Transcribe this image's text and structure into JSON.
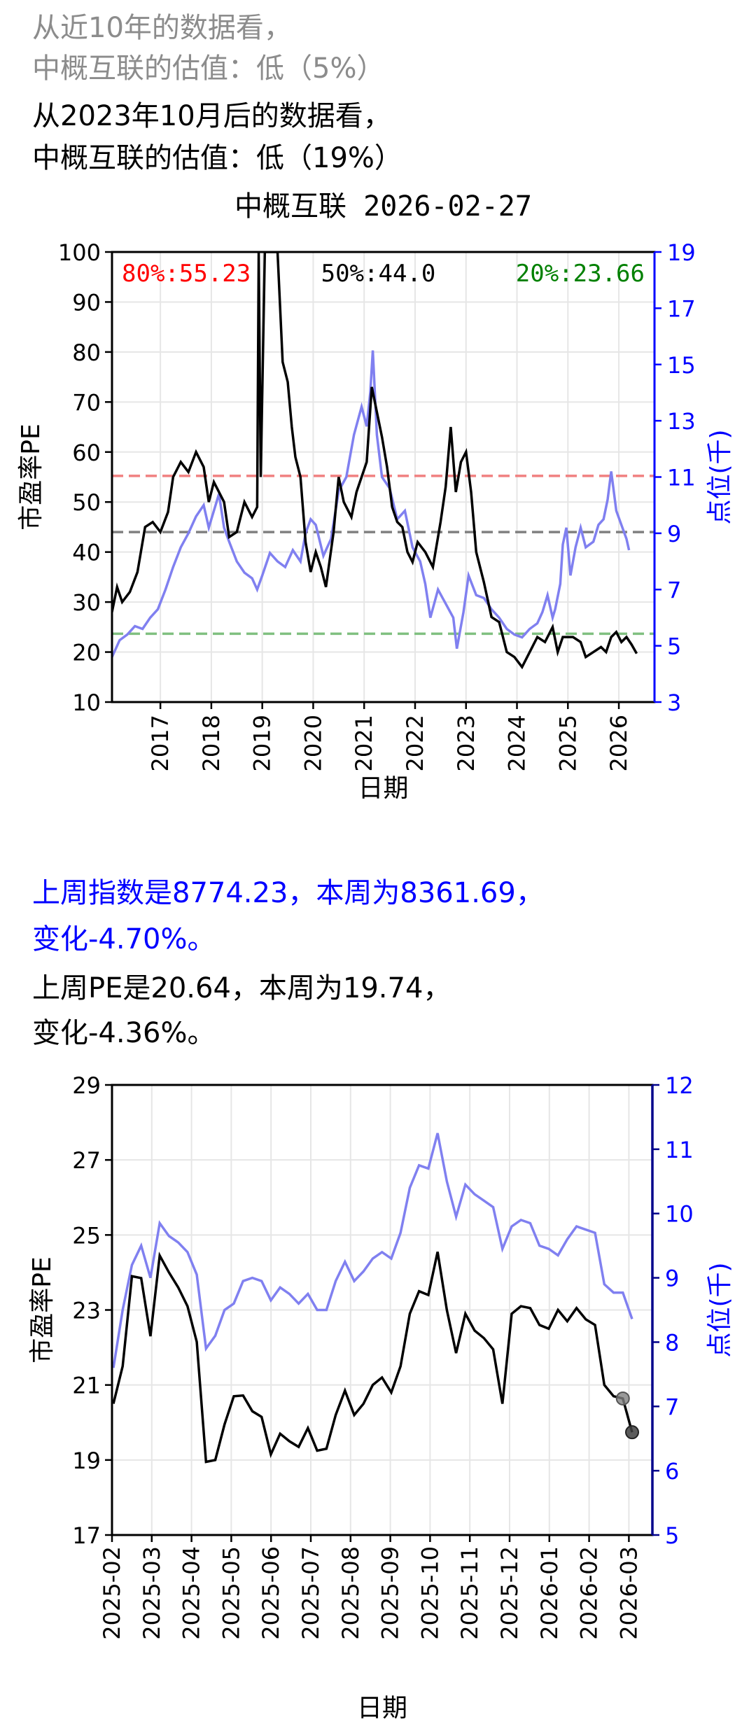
{
  "header": {
    "line1": "从近10年的数据看，",
    "line2": "中概互联的估值：低（5%）",
    "line3": "从2023年10月后的数据看，",
    "line4": "中概互联的估值：低（19%）"
  },
  "summary": {
    "index_line1": "上周指数是8774.23，本周为8361.69，",
    "index_line2": "变化-4.70%。",
    "pe_line1": "上周PE是20.64，本周为19.74，",
    "pe_line2": "变化-4.36%。"
  },
  "colors": {
    "pe": "#000000",
    "index": "#8080f0",
    "p80": "#f08080",
    "p50": "#808080",
    "p20": "#80c080",
    "right_axis": "#0000ff",
    "right_axis2": "#00008b"
  },
  "chart_data": [
    {
      "type": "line",
      "title": "中概互联 2026-02-27",
      "xlabel": "日期",
      "ylabel": "市盈率PE",
      "y2label": "点位(千)",
      "ylim": [
        10,
        100
      ],
      "y2lim": [
        3,
        19
      ],
      "yticks": [
        10,
        20,
        30,
        40,
        50,
        60,
        70,
        80,
        90,
        100
      ],
      "y2ticks": [
        3,
        5,
        7,
        9,
        11,
        13,
        15,
        17,
        19
      ],
      "xticks": [
        "2017",
        "2018",
        "2019",
        "2020",
        "2021",
        "2022",
        "2023",
        "2024",
        "2025",
        "2026"
      ],
      "xlim": [
        2016.05,
        2026.7
      ],
      "grid": true,
      "percentiles": [
        {
          "label": "80%:55.23",
          "value": 55.23,
          "color": "#ff0000"
        },
        {
          "label": "50%:44.0",
          "value": 44.0,
          "color": "#000000"
        },
        {
          "label": "20%:23.66",
          "value": 23.66,
          "color": "#008000"
        }
      ],
      "series": [
        {
          "name": "PE",
          "axis": "left",
          "points": [
            [
              2016.05,
              28
            ],
            [
              2016.15,
              33
            ],
            [
              2016.25,
              30
            ],
            [
              2016.4,
              32
            ],
            [
              2016.55,
              36
            ],
            [
              2016.7,
              45
            ],
            [
              2016.85,
              46
            ],
            [
              2017.0,
              44
            ],
            [
              2017.15,
              48
            ],
            [
              2017.25,
              55
            ],
            [
              2017.4,
              58
            ],
            [
              2017.55,
              56
            ],
            [
              2017.7,
              60
            ],
            [
              2017.85,
              57
            ],
            [
              2017.95,
              50
            ],
            [
              2018.05,
              54
            ],
            [
              2018.15,
              52
            ],
            [
              2018.25,
              50
            ],
            [
              2018.35,
              43
            ],
            [
              2018.5,
              44
            ],
            [
              2018.65,
              50
            ],
            [
              2018.8,
              47
            ],
            [
              2018.9,
              49
            ],
            [
              2018.93,
              100
            ],
            [
              2018.97,
              55
            ],
            [
              2019.05,
              100
            ],
            [
              2019.3,
              100
            ],
            [
              2019.4,
              78
            ],
            [
              2019.5,
              74
            ],
            [
              2019.58,
              65
            ],
            [
              2019.65,
              59
            ],
            [
              2019.75,
              55
            ],
            [
              2019.85,
              42
            ],
            [
              2019.95,
              36
            ],
            [
              2020.05,
              40
            ],
            [
              2020.15,
              37
            ],
            [
              2020.25,
              33
            ],
            [
              2020.4,
              44
            ],
            [
              2020.5,
              55
            ],
            [
              2020.6,
              50
            ],
            [
              2020.75,
              47
            ],
            [
              2020.85,
              52
            ],
            [
              2020.95,
              55
            ],
            [
              2021.05,
              58
            ],
            [
              2021.15,
              73
            ],
            [
              2021.25,
              68
            ],
            [
              2021.35,
              63
            ],
            [
              2021.45,
              57
            ],
            [
              2021.55,
              49
            ],
            [
              2021.65,
              46
            ],
            [
              2021.75,
              45
            ],
            [
              2021.85,
              40
            ],
            [
              2021.95,
              38
            ],
            [
              2022.05,
              42
            ],
            [
              2022.2,
              40
            ],
            [
              2022.35,
              37
            ],
            [
              2022.5,
              46
            ],
            [
              2022.6,
              53
            ],
            [
              2022.7,
              65
            ],
            [
              2022.8,
              52
            ],
            [
              2022.9,
              58
            ],
            [
              2023.0,
              60
            ],
            [
              2023.1,
              52
            ],
            [
              2023.2,
              40
            ],
            [
              2023.35,
              34
            ],
            [
              2023.5,
              27
            ],
            [
              2023.65,
              26
            ],
            [
              2023.8,
              20
            ],
            [
              2023.95,
              19
            ],
            [
              2024.1,
              17
            ],
            [
              2024.25,
              20
            ],
            [
              2024.4,
              23
            ],
            [
              2024.55,
              22
            ],
            [
              2024.7,
              25
            ],
            [
              2024.8,
              20
            ],
            [
              2024.9,
              23
            ],
            [
              2025.1,
              23
            ],
            [
              2025.25,
              22
            ],
            [
              2025.35,
              19
            ],
            [
              2025.5,
              20
            ],
            [
              2025.65,
              21
            ],
            [
              2025.75,
              20
            ],
            [
              2025.85,
              23
            ],
            [
              2025.95,
              24
            ],
            [
              2026.05,
              22
            ],
            [
              2026.15,
              23
            ],
            [
              2026.25,
              21.5
            ],
            [
              2026.35,
              19.7
            ]
          ]
        },
        {
          "name": "点位(千)",
          "axis": "right",
          "points": [
            [
              2016.05,
              4.6
            ],
            [
              2016.2,
              5.2
            ],
            [
              2016.35,
              5.4
            ],
            [
              2016.5,
              5.7
            ],
            [
              2016.65,
              5.6
            ],
            [
              2016.8,
              6.0
            ],
            [
              2016.95,
              6.3
            ],
            [
              2017.1,
              7.0
            ],
            [
              2017.25,
              7.8
            ],
            [
              2017.4,
              8.5
            ],
            [
              2017.55,
              9.0
            ],
            [
              2017.7,
              9.6
            ],
            [
              2017.85,
              10.0
            ],
            [
              2017.95,
              9.2
            ],
            [
              2018.05,
              9.8
            ],
            [
              2018.15,
              10.4
            ],
            [
              2018.25,
              9.2
            ],
            [
              2018.35,
              8.7
            ],
            [
              2018.5,
              8.0
            ],
            [
              2018.65,
              7.6
            ],
            [
              2018.8,
              7.4
            ],
            [
              2018.9,
              7.0
            ],
            [
              2019.0,
              7.5
            ],
            [
              2019.15,
              8.3
            ],
            [
              2019.3,
              8.0
            ],
            [
              2019.45,
              7.8
            ],
            [
              2019.6,
              8.4
            ],
            [
              2019.75,
              8.0
            ],
            [
              2019.85,
              9.0
            ],
            [
              2019.95,
              9.5
            ],
            [
              2020.05,
              9.3
            ],
            [
              2020.2,
              8.2
            ],
            [
              2020.35,
              8.8
            ],
            [
              2020.5,
              10.5
            ],
            [
              2020.65,
              11.0
            ],
            [
              2020.8,
              12.5
            ],
            [
              2020.95,
              13.5
            ],
            [
              2021.05,
              12.8
            ],
            [
              2021.12,
              14.0
            ],
            [
              2021.17,
              15.5
            ],
            [
              2021.25,
              12.5
            ],
            [
              2021.35,
              11.0
            ],
            [
              2021.5,
              10.6
            ],
            [
              2021.65,
              9.5
            ],
            [
              2021.8,
              9.8
            ],
            [
              2021.95,
              8.5
            ],
            [
              2022.1,
              8.0
            ],
            [
              2022.2,
              7.2
            ],
            [
              2022.3,
              6.0
            ],
            [
              2022.45,
              7.0
            ],
            [
              2022.6,
              6.5
            ],
            [
              2022.75,
              6.0
            ],
            [
              2022.82,
              4.9
            ],
            [
              2022.95,
              6.2
            ],
            [
              2023.05,
              7.5
            ],
            [
              2023.2,
              6.8
            ],
            [
              2023.35,
              6.7
            ],
            [
              2023.5,
              6.3
            ],
            [
              2023.65,
              6.0
            ],
            [
              2023.8,
              5.6
            ],
            [
              2023.95,
              5.4
            ],
            [
              2024.1,
              5.3
            ],
            [
              2024.25,
              5.6
            ],
            [
              2024.4,
              5.8
            ],
            [
              2024.5,
              6.2
            ],
            [
              2024.6,
              6.8
            ],
            [
              2024.7,
              6.0
            ],
            [
              2024.75,
              6.3
            ],
            [
              2024.85,
              7.2
            ],
            [
              2024.9,
              8.6
            ],
            [
              2024.97,
              9.2
            ],
            [
              2025.05,
              7.5
            ],
            [
              2025.15,
              8.5
            ],
            [
              2025.25,
              9.2
            ],
            [
              2025.35,
              8.5
            ],
            [
              2025.5,
              8.7
            ],
            [
              2025.6,
              9.3
            ],
            [
              2025.7,
              9.5
            ],
            [
              2025.78,
              10.2
            ],
            [
              2025.85,
              11.2
            ],
            [
              2025.95,
              9.8
            ],
            [
              2026.05,
              9.3
            ],
            [
              2026.15,
              8.8
            ],
            [
              2026.2,
              8.4
            ]
          ]
        }
      ]
    },
    {
      "type": "line",
      "xlabel": "日期",
      "ylabel": "市盈率PE",
      "y2label": "点位(千)",
      "ylim": [
        17,
        29
      ],
      "y2lim": [
        5,
        12
      ],
      "yticks": [
        17,
        19,
        21,
        23,
        25,
        27,
        29
      ],
      "y2ticks": [
        5,
        6,
        7,
        8,
        9,
        10,
        11,
        12
      ],
      "xticks": [
        "2025-02",
        "2025-03",
        "2025-04",
        "2025-05",
        "2025-06",
        "2025-07",
        "2025-08",
        "2025-09",
        "2025-10",
        "2025-11",
        "2025-12",
        "2026-01",
        "2026-02",
        "2026-03"
      ],
      "grid": true,
      "series": [
        {
          "name": "PE",
          "axis": "left",
          "values": [
            20.5,
            21.5,
            23.9,
            23.85,
            22.3,
            24.45,
            24.0,
            23.6,
            23.1,
            22.15,
            18.95,
            19.0,
            19.95,
            20.7,
            20.72,
            20.3,
            20.15,
            19.15,
            19.7,
            19.5,
            19.35,
            19.85,
            19.25,
            19.3,
            20.2,
            20.85,
            20.2,
            20.5,
            21.0,
            21.2,
            20.8,
            21.5,
            22.9,
            23.5,
            23.4,
            24.55,
            23.0,
            21.85,
            22.9,
            22.45,
            22.25,
            21.95,
            20.5,
            22.9,
            23.1,
            23.05,
            22.6,
            22.5,
            23.0,
            22.7,
            23.05,
            22.75,
            22.6,
            21.0,
            20.7,
            20.64,
            19.74
          ]
        },
        {
          "name": "点位(千)",
          "axis": "right",
          "values": [
            7.6,
            8.5,
            9.2,
            9.5,
            9.0,
            9.85,
            9.65,
            9.55,
            9.4,
            9.05,
            7.9,
            8.1,
            8.5,
            8.6,
            8.95,
            9.0,
            8.95,
            8.65,
            8.85,
            8.75,
            8.6,
            8.75,
            8.5,
            8.5,
            8.95,
            9.25,
            8.95,
            9.1,
            9.3,
            9.4,
            9.3,
            9.7,
            10.4,
            10.75,
            10.7,
            11.25,
            10.5,
            9.95,
            10.45,
            10.3,
            10.2,
            10.1,
            9.45,
            9.8,
            9.9,
            9.85,
            9.5,
            9.45,
            9.35,
            9.6,
            9.8,
            9.75,
            9.7,
            8.9,
            8.77,
            8.77,
            8.36
          ]
        }
      ],
      "highlight_points": [
        {
          "label": "上周PE",
          "value": 20.64
        },
        {
          "label": "本周PE",
          "value": 19.74
        }
      ]
    }
  ]
}
